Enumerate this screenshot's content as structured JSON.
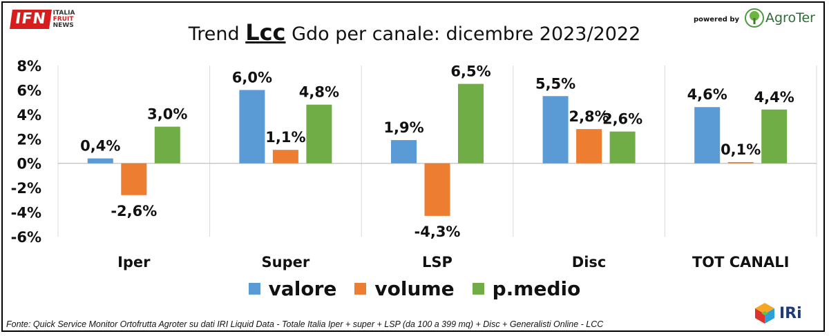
{
  "header": {
    "title_prefix": "Trend ",
    "title_highlight": "Lcc",
    "title_suffix": " Gdo per canale: dicembre 2023/2022",
    "ifn_logo": {
      "mark": "IFN",
      "line1": "ITALIA",
      "line2": "FRUIT",
      "line3": "NEWS"
    },
    "powered_by": "powered by",
    "agroter_name": "AgroTer",
    "agroter_icon": "tree-logo-icon"
  },
  "footer": {
    "source": "Fonte: Quick Service Monitor Ortofrutta Agroter su dati IRI Liquid Data - Totale Italia Iper + super + LSP (da 100 a 399 mq) + Disc + Generalisti Online - LCC",
    "iri_name": "IRi",
    "iri_icon": "cube-logo-icon"
  },
  "legend": [
    {
      "label": "valore",
      "color": "#5b9bd5"
    },
    {
      "label": "volume",
      "color": "#ed7d31"
    },
    {
      "label": "p.medio",
      "color": "#70ad47"
    }
  ],
  "chart_data": {
    "type": "bar",
    "title": "Trend Lcc Gdo per canale: dicembre 2023/2022",
    "categories": [
      "Iper",
      "Super",
      "LSP",
      "Disc",
      "TOT CANALI"
    ],
    "series": [
      {
        "name": "valore",
        "color": "#5b9bd5",
        "values": [
          0.4,
          6.0,
          1.9,
          5.5,
          4.6
        ],
        "labels": [
          "0,4%",
          "6,0%",
          "1,9%",
          "5,5%",
          "4,6%"
        ]
      },
      {
        "name": "volume",
        "color": "#ed7d31",
        "values": [
          -2.6,
          1.1,
          -4.3,
          2.8,
          0.1
        ],
        "labels": [
          "-2,6%",
          "1,1%",
          "-4,3%",
          "2,8%",
          "0,1%"
        ]
      },
      {
        "name": "p.medio",
        "color": "#70ad47",
        "values": [
          3.0,
          4.8,
          6.5,
          2.6,
          4.4
        ],
        "labels": [
          "3,0%",
          "4,8%",
          "6,5%",
          "2,6%",
          "4,4%"
        ]
      }
    ],
    "ylim": [
      -6,
      8
    ],
    "yticks": [
      8,
      6,
      4,
      2,
      0,
      -2,
      -4,
      -6
    ],
    "ytick_labels": [
      "8%",
      "6%",
      "4%",
      "2%",
      "0%",
      "-2%",
      "-4%",
      "-6%"
    ],
    "grid": "vertical category separators",
    "legend_position": "bottom"
  }
}
